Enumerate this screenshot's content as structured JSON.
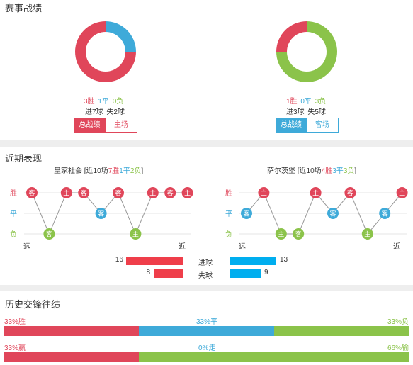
{
  "record": {
    "title": "赛事战绩",
    "left": {
      "win": "3胜",
      "draw": "1平",
      "lose": "0负",
      "goals_for": "进7球",
      "goals_against": "失2球",
      "tab_total": "总战绩",
      "tab_home": "主场",
      "pie": {
        "win": 3,
        "draw": 1,
        "lose": 0
      }
    },
    "right": {
      "win": "1胜",
      "draw": "0平",
      "lose": "3负",
      "goals_for": "进3球",
      "goals_against": "失5球",
      "tab_total": "总战绩",
      "tab_away": "客场",
      "pie": {
        "win": 1,
        "draw": 0,
        "lose": 3
      }
    }
  },
  "recent": {
    "title": "近期表现",
    "row_labels": [
      "胜",
      "平",
      "负"
    ],
    "far_label": "远",
    "near_label": "近",
    "left_team": {
      "name": "皇家社会",
      "summary_pre": "[近10场",
      "win": "7胜",
      "draw": "1平",
      "lose": "2负",
      "summary_post": "]",
      "results": [
        {
          "r": "W",
          "venue": "客"
        },
        {
          "r": "L",
          "venue": "客"
        },
        {
          "r": "W",
          "venue": "主"
        },
        {
          "r": "W",
          "venue": "客"
        },
        {
          "r": "D",
          "venue": "客"
        },
        {
          "r": "W",
          "venue": "客"
        },
        {
          "r": "L",
          "venue": "主"
        },
        {
          "r": "W",
          "venue": "主"
        },
        {
          "r": "W",
          "venue": "客"
        },
        {
          "r": "W",
          "venue": "主"
        }
      ]
    },
    "right_team": {
      "name": "萨尔茨堡",
      "summary_pre": "[近10场",
      "win": "4胜",
      "draw": "3平",
      "lose": "3负",
      "summary_post": "]",
      "results": [
        {
          "r": "D",
          "venue": "客"
        },
        {
          "r": "W",
          "venue": "主"
        },
        {
          "r": "L",
          "venue": "主"
        },
        {
          "r": "L",
          "venue": "客"
        },
        {
          "r": "W",
          "venue": "主"
        },
        {
          "r": "D",
          "venue": "客"
        },
        {
          "r": "W",
          "venue": "客"
        },
        {
          "r": "L",
          "venue": "主"
        },
        {
          "r": "D",
          "venue": "客"
        },
        {
          "r": "W",
          "venue": "主"
        }
      ]
    },
    "goals": {
      "scored_label": "进球",
      "conceded_label": "失球",
      "left_scored": 16,
      "right_scored": 13,
      "left_conceded": 8,
      "right_conceded": 9
    }
  },
  "h2h": {
    "title": "历史交锋往绩",
    "row1": {
      "left": "33%胜",
      "mid": "33%平",
      "right": "33%负",
      "values": [
        33,
        33,
        33
      ]
    },
    "row2": {
      "left": "33%赢",
      "mid": "0%走",
      "right": "66%输",
      "values": [
        33,
        0,
        66
      ]
    }
  },
  "colors": {
    "win": "#e0465a",
    "draw": "#3eaad9",
    "lose": "#8bc34a",
    "goal_left": "#ef3e4a",
    "goal_right": "#00aeef"
  }
}
